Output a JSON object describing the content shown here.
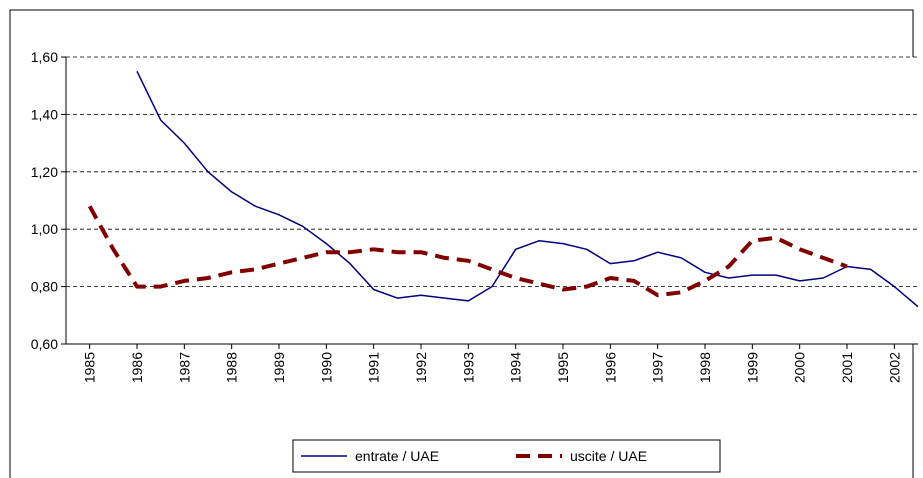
{
  "chart_data": {
    "type": "line",
    "x": [
      1985,
      1985.5,
      1986,
      1986.5,
      1987,
      1987.5,
      1988,
      1988.5,
      1989,
      1989.5,
      1990,
      1990.5,
      1991,
      1991.5,
      1992,
      1992.5,
      1993,
      1993.5,
      1994,
      1994.5,
      1995,
      1995.5,
      1996,
      1996.5,
      1997,
      1997.5,
      1998,
      1998.5,
      1999,
      1999.5,
      2000,
      2000.5,
      2001,
      2001.5,
      2002,
      2002.5
    ],
    "xlim": [
      1984.5,
      2002.5
    ],
    "xticks": [
      1985,
      1986,
      1987,
      1988,
      1989,
      1990,
      1991,
      1992,
      1993,
      1994,
      1995,
      1996,
      1997,
      1998,
      1999,
      2000,
      2001,
      2002
    ],
    "ylim": [
      0.6,
      1.6
    ],
    "yticks": [
      {
        "value": 0.6,
        "label": "0,60"
      },
      {
        "value": 0.8,
        "label": "0,80"
      },
      {
        "value": 1.0,
        "label": "1,00"
      },
      {
        "value": 1.2,
        "label": "1,20"
      },
      {
        "value": 1.4,
        "label": "1,40"
      },
      {
        "value": 1.6,
        "label": "1,60"
      }
    ],
    "grid": true,
    "legend": "bottom",
    "series": [
      {
        "name": "entrate / UAE",
        "color": "#000080",
        "dash": false,
        "values": [
          null,
          null,
          1.55,
          1.38,
          1.3,
          1.2,
          1.13,
          1.08,
          1.05,
          1.01,
          0.95,
          0.88,
          0.79,
          0.76,
          0.77,
          0.76,
          0.75,
          0.8,
          0.93,
          0.96,
          0.95,
          0.93,
          0.88,
          0.89,
          0.92,
          0.9,
          0.85,
          0.83,
          0.84,
          0.84,
          0.82,
          0.83,
          0.87,
          0.86,
          0.8,
          0.73
        ]
      },
      {
        "name": "uscite / UAE",
        "color": "#800000",
        "dash": true,
        "values": [
          1.08,
          0.93,
          0.8,
          0.8,
          0.82,
          0.83,
          0.85,
          0.86,
          0.88,
          0.9,
          0.92,
          0.92,
          0.93,
          0.92,
          0.92,
          0.9,
          0.89,
          0.86,
          0.83,
          0.81,
          0.79,
          0.8,
          0.83,
          0.82,
          0.77,
          0.78,
          0.82,
          0.87,
          0.96,
          0.97,
          0.93,
          0.9,
          0.87,
          null,
          null,
          null
        ]
      }
    ]
  }
}
